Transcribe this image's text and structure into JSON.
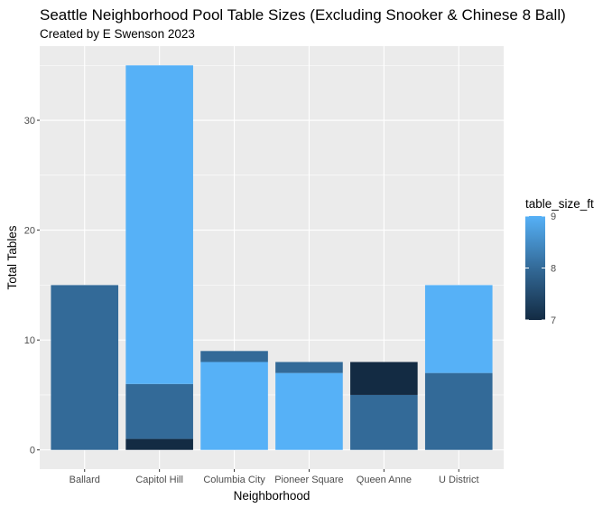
{
  "chart_data": {
    "type": "bar",
    "title": "Seattle Neighborhood Pool Table Sizes (Excluding Snooker & Chinese 8 Ball)",
    "subtitle": "Created by E Swenson 2023",
    "xlabel": "Neighborhood",
    "ylabel": "Total Tables",
    "categories": [
      "Ballard",
      "Capitol Hill",
      "Columbia City",
      "Pioneer Square",
      "Queen Anne",
      "U District"
    ],
    "stacked": true,
    "ylim": [
      -1.75,
      36.75
    ],
    "yticks": [
      0,
      10,
      20,
      30
    ],
    "stacks": [
      [
        {
          "size": 8,
          "count": 15
        }
      ],
      [
        {
          "size": 7,
          "count": 1
        },
        {
          "size": 8,
          "count": 5
        },
        {
          "size": 9,
          "count": 29
        }
      ],
      [
        {
          "size": 9,
          "count": 8
        },
        {
          "size": 8,
          "count": 1
        }
      ],
      [
        {
          "size": 9,
          "count": 7
        },
        {
          "size": 8,
          "count": 1
        }
      ],
      [
        {
          "size": 8,
          "count": 5
        },
        {
          "size": 7,
          "count": 3
        }
      ],
      [
        {
          "size": 8,
          "count": 7
        },
        {
          "size": 9,
          "count": 8
        }
      ]
    ],
    "legend": {
      "title": "table_size_ft",
      "position": "right",
      "ticks": [
        7,
        8,
        9
      ],
      "colors": {
        "7": "#132b43",
        "8": "#336a98",
        "9": "#56b1f7"
      }
    },
    "grid": true,
    "panel_background": "#ebebeb",
    "grid_color": "#ffffff"
  }
}
